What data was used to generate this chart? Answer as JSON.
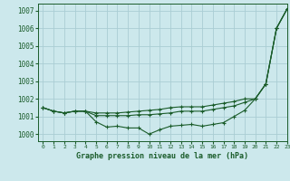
{
  "title": "Graphe pression niveau de la mer (hPa)",
  "bg_color": "#cce8ec",
  "grid_color": "#aacdd4",
  "line_color": "#1a5c2a",
  "xlim": [
    -0.5,
    23
  ],
  "ylim": [
    999.6,
    1007.4
  ],
  "yticks": [
    1000,
    1001,
    1002,
    1003,
    1004,
    1005,
    1006,
    1007
  ],
  "xticks": [
    0,
    1,
    2,
    3,
    4,
    5,
    6,
    7,
    8,
    9,
    10,
    11,
    12,
    13,
    14,
    15,
    16,
    17,
    18,
    19,
    20,
    21,
    22,
    23
  ],
  "series": [
    [
      1001.5,
      1001.3,
      1001.2,
      1001.3,
      1001.3,
      1000.7,
      1000.4,
      1000.45,
      1000.35,
      1000.35,
      1000.0,
      1000.25,
      1000.45,
      1000.5,
      1000.55,
      1000.45,
      1000.55,
      1000.65,
      1001.0,
      1001.35,
      1002.0,
      1002.85,
      1006.0,
      1007.1
    ],
    [
      1001.5,
      1001.3,
      1001.2,
      1001.3,
      1001.3,
      1001.05,
      1001.05,
      1001.05,
      1001.05,
      1001.1,
      1001.1,
      1001.15,
      1001.2,
      1001.3,
      1001.3,
      1001.3,
      1001.4,
      1001.5,
      1001.6,
      1001.8,
      1002.0,
      1002.85,
      1006.0,
      1007.1
    ],
    [
      1001.5,
      1001.3,
      1001.2,
      1001.3,
      1001.3,
      1001.2,
      1001.2,
      1001.2,
      1001.25,
      1001.3,
      1001.35,
      1001.4,
      1001.5,
      1001.55,
      1001.55,
      1001.55,
      1001.65,
      1001.75,
      1001.85,
      1002.0,
      1002.0,
      1002.85,
      1006.0,
      1007.1
    ]
  ]
}
